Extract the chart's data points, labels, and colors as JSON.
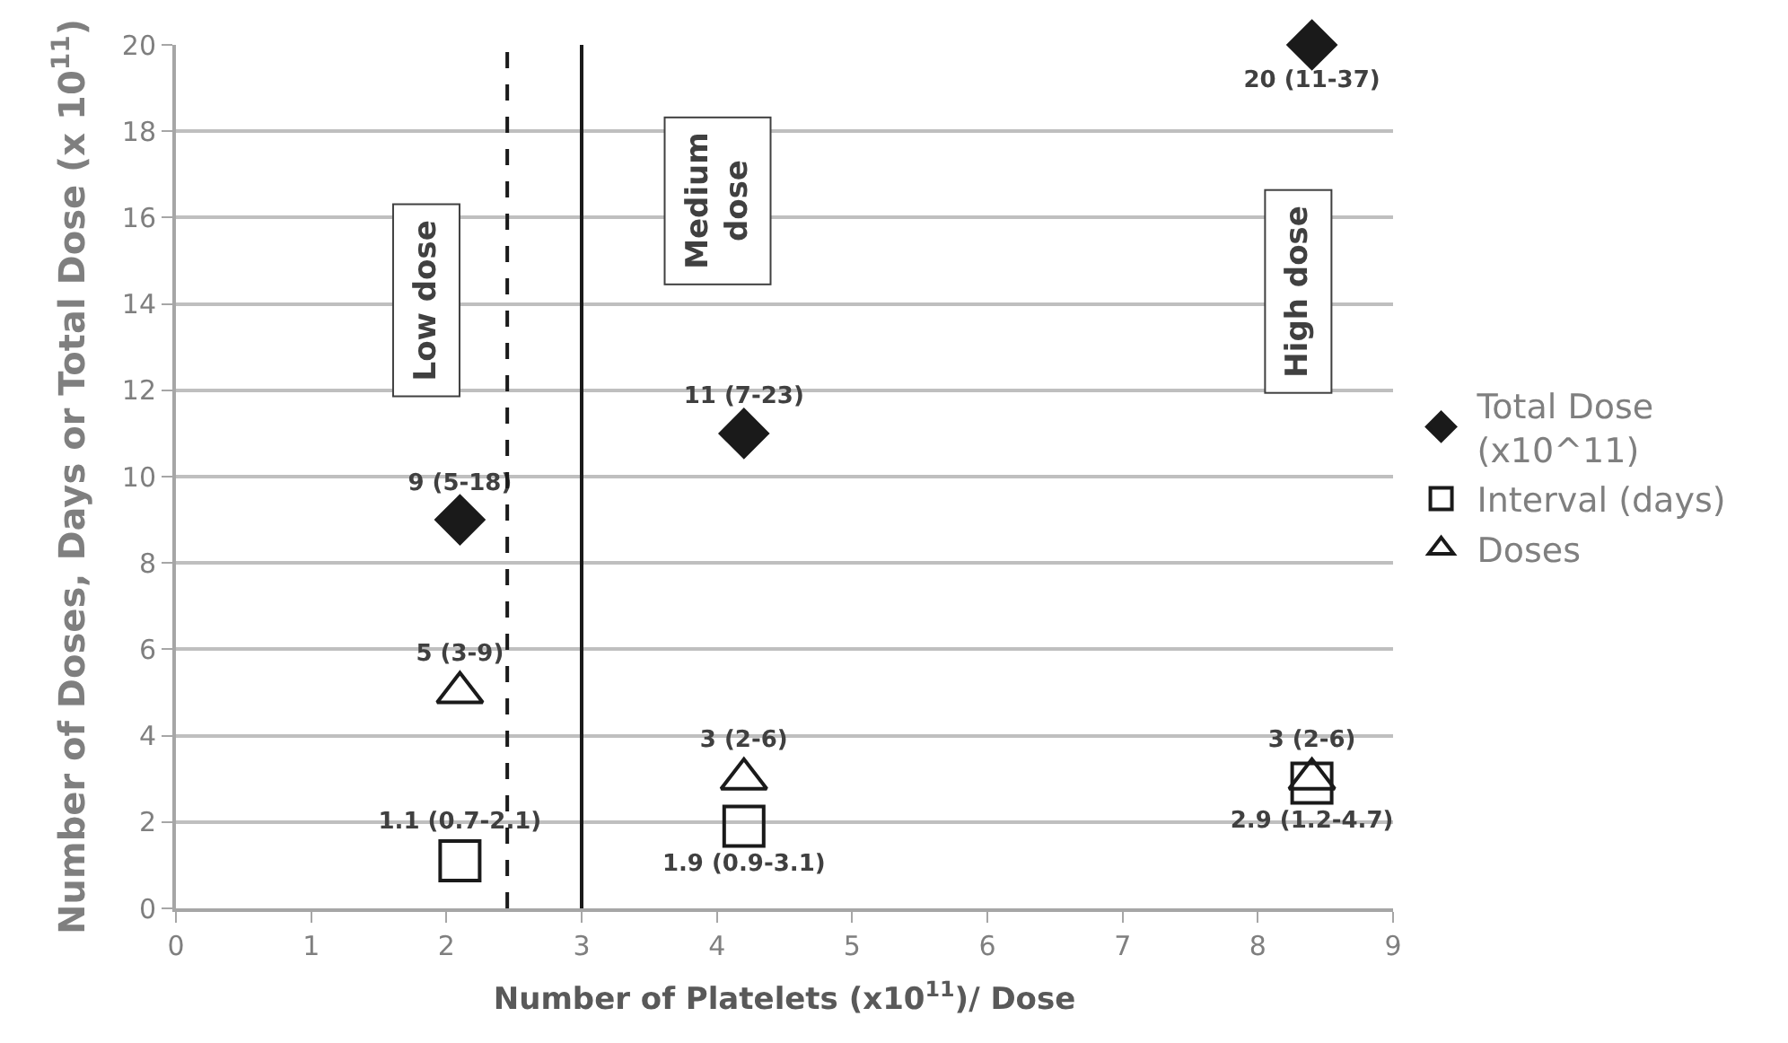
{
  "chart_data": {
    "type": "scatter",
    "xlabel": "Number of Platelets (x10$^{11}$)/ Dose",
    "ylabel": "Number of Doses, Days or Total Dose (x 10$^{11}$)",
    "x": [
      2.1,
      4.2,
      8.4
    ],
    "series": [
      {
        "name": "Total Dose (x10^11)",
        "color": "#1a1a1a",
        "marker": "diamond",
        "values": [
          9,
          11,
          20
        ],
        "value_labels": [
          "9 (5-18)",
          "11 (7-23)",
          "20 (11-37)"
        ]
      },
      {
        "name": "Interval (days)",
        "color": "#1a1a1a",
        "marker": "square",
        "values": [
          1.1,
          1.9,
          2.9
        ],
        "value_labels": [
          "1.1 (0.7-2.1)",
          "1.9 (0.9-3.1)",
          "2.9 (1.2-4.7)"
        ]
      },
      {
        "name": "Doses",
        "color": "#1a1a1a",
        "marker": "triangle",
        "values": [
          5,
          3,
          3
        ],
        "value_labels": [
          "5 (3-9)",
          "3 (2-6)",
          "3 (2-6)"
        ]
      }
    ],
    "annotations": [
      "Low dose",
      "Medium dose",
      "High dose"
    ],
    "ref_lines": [
      {
        "axis": "x",
        "value": 2.45,
        "color": "#1a1a1a",
        "line_style": "dashed"
      },
      {
        "axis": "x",
        "value": 3,
        "color": "#1a1a1a",
        "line_style": "solid"
      }
    ],
    "xlim": [
      0,
      9
    ],
    "xticks": [
      0,
      1,
      2,
      3,
      4,
      5,
      6,
      7,
      8,
      9
    ],
    "ylim": [
      0,
      20
    ],
    "yticks": [
      0,
      2,
      4,
      6,
      8,
      10,
      12,
      14,
      16,
      18,
      20
    ],
    "grid": "y",
    "legend": "right"
  }
}
